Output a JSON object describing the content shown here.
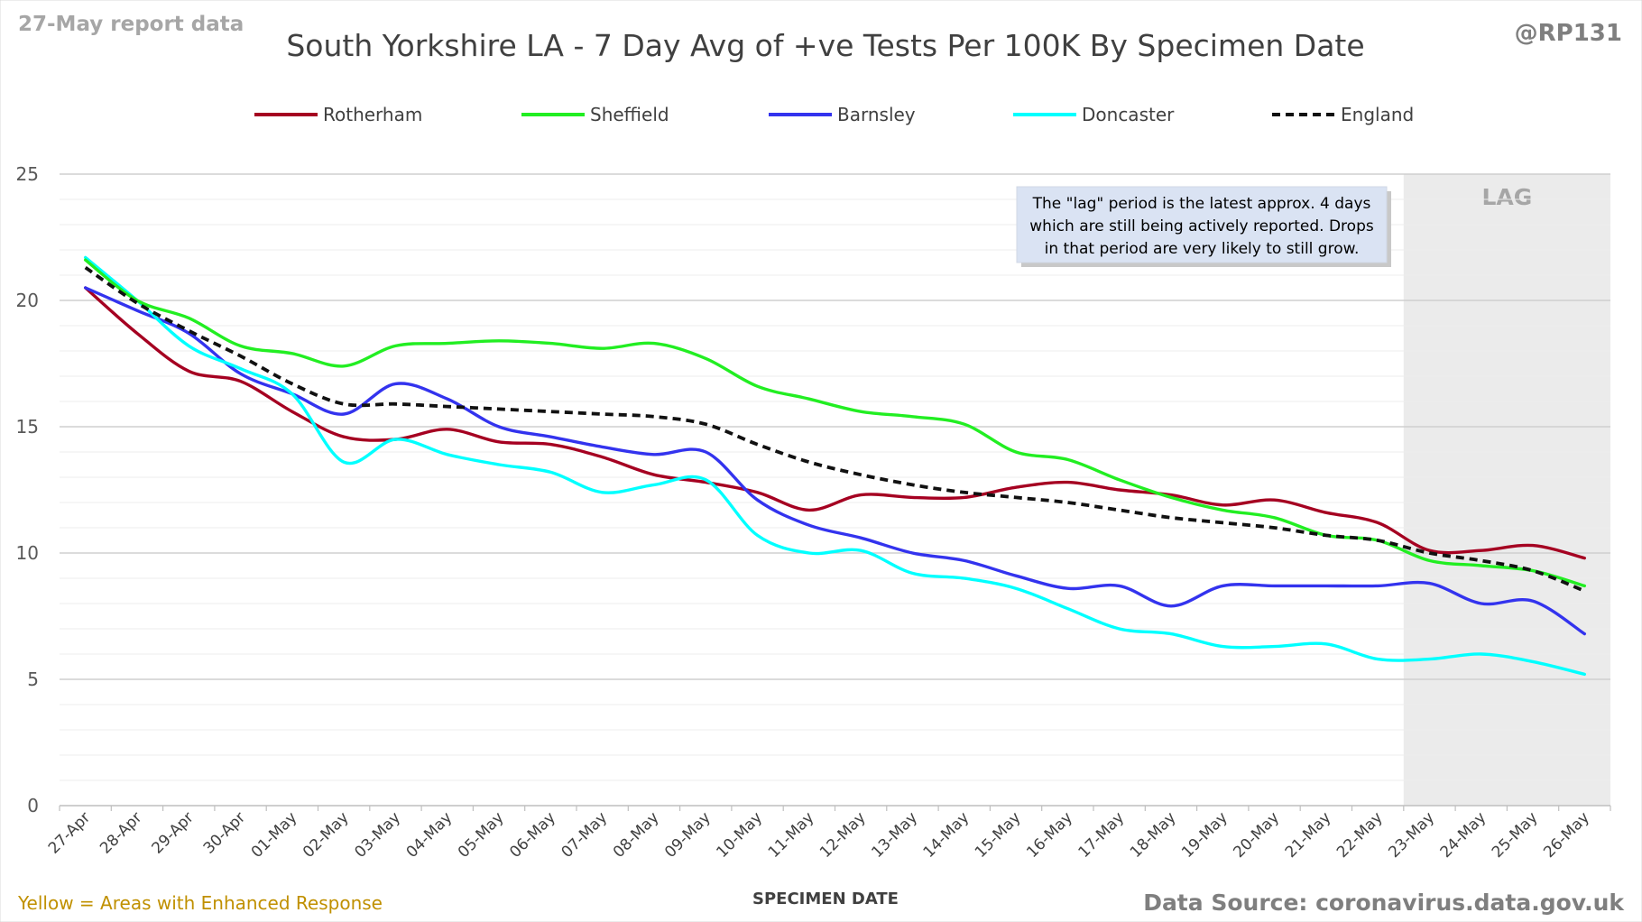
{
  "header": {
    "report_note": "27-May report data",
    "handle": "@RP131"
  },
  "footer": {
    "enhanced_note": "Yellow = Areas with Enhanced Response",
    "source": "Data Source: coronavirus.data.gov.uk"
  },
  "colors": {
    "Rotherham": "#a50021",
    "Sheffield": "#22ee22",
    "Barnsley": "#3333ee",
    "Doncaster": "#00ffff",
    "England": "#111111",
    "lag_shade": "#ebebeb",
    "annotation_bg": "#dae3f3",
    "footer_note": "#c09000"
  },
  "chart_data": {
    "type": "line",
    "title": "South Yorkshire LA - 7 Day Avg of +ve Tests Per 100K By Specimen Date",
    "xlabel": "SPECIMEN DATE",
    "ylabel": "",
    "ylim": [
      0,
      25
    ],
    "yticks": [
      0,
      5,
      10,
      15,
      20,
      25
    ],
    "grid": true,
    "legend_position": "top",
    "categories": [
      "27-Apr",
      "28-Apr",
      "29-Apr",
      "30-Apr",
      "01-May",
      "02-May",
      "03-May",
      "04-May",
      "05-May",
      "06-May",
      "07-May",
      "08-May",
      "09-May",
      "10-May",
      "11-May",
      "12-May",
      "13-May",
      "14-May",
      "15-May",
      "16-May",
      "17-May",
      "18-May",
      "19-May",
      "20-May",
      "21-May",
      "22-May",
      "23-May",
      "24-May",
      "25-May",
      "26-May"
    ],
    "series": [
      {
        "name": "Rotherham",
        "style": "solid",
        "values": [
          20.5,
          18.7,
          17.2,
          16.8,
          15.6,
          14.6,
          14.5,
          14.9,
          14.4,
          14.3,
          13.8,
          13.1,
          12.8,
          12.4,
          11.7,
          12.3,
          12.2,
          12.2,
          12.6,
          12.8,
          12.5,
          12.3,
          11.9,
          12.1,
          11.6,
          11.2,
          10.1,
          10.1,
          10.3,
          9.8
        ]
      },
      {
        "name": "Sheffield",
        "style": "solid",
        "values": [
          21.6,
          20.0,
          19.3,
          18.2,
          17.9,
          17.4,
          18.2,
          18.3,
          18.4,
          18.3,
          18.1,
          18.3,
          17.7,
          16.6,
          16.1,
          15.6,
          15.4,
          15.1,
          14.0,
          13.7,
          12.9,
          12.2,
          11.7,
          11.4,
          10.7,
          10.5,
          9.7,
          9.5,
          9.3,
          8.7
        ]
      },
      {
        "name": "Barnsley",
        "style": "solid",
        "values": [
          20.5,
          19.6,
          18.7,
          17.1,
          16.3,
          15.5,
          16.7,
          16.1,
          15.0,
          14.6,
          14.2,
          13.9,
          14.0,
          12.1,
          11.1,
          10.6,
          10.0,
          9.7,
          9.1,
          8.6,
          8.7,
          7.9,
          8.7,
          8.7,
          8.7,
          8.7,
          8.8,
          8.0,
          8.1,
          6.8
        ]
      },
      {
        "name": "Doncaster",
        "style": "solid",
        "values": [
          21.7,
          20.0,
          18.2,
          17.3,
          16.3,
          13.6,
          14.5,
          13.9,
          13.5,
          13.2,
          12.4,
          12.7,
          12.9,
          10.7,
          10.0,
          10.1,
          9.2,
          9.0,
          8.6,
          7.8,
          7.0,
          6.8,
          6.3,
          6.3,
          6.4,
          5.8,
          5.8,
          6.0,
          5.7,
          5.2
        ]
      },
      {
        "name": "England",
        "style": "dashed",
        "values": [
          21.3,
          19.9,
          18.8,
          17.8,
          16.7,
          15.9,
          15.9,
          15.8,
          15.7,
          15.6,
          15.5,
          15.4,
          15.1,
          14.3,
          13.6,
          13.1,
          12.7,
          12.4,
          12.2,
          12.0,
          11.7,
          11.4,
          11.2,
          11.0,
          10.7,
          10.5,
          10.0,
          9.7,
          9.3,
          8.5
        ]
      }
    ],
    "lag": {
      "label": "LAG",
      "start_category": "23-May",
      "end_category": "26-May"
    },
    "annotation": {
      "lines": [
        "The \"lag\" period is the latest approx. 4 days",
        "which are still being actively reported. Drops",
        "in that period are very likely to still grow."
      ]
    }
  }
}
